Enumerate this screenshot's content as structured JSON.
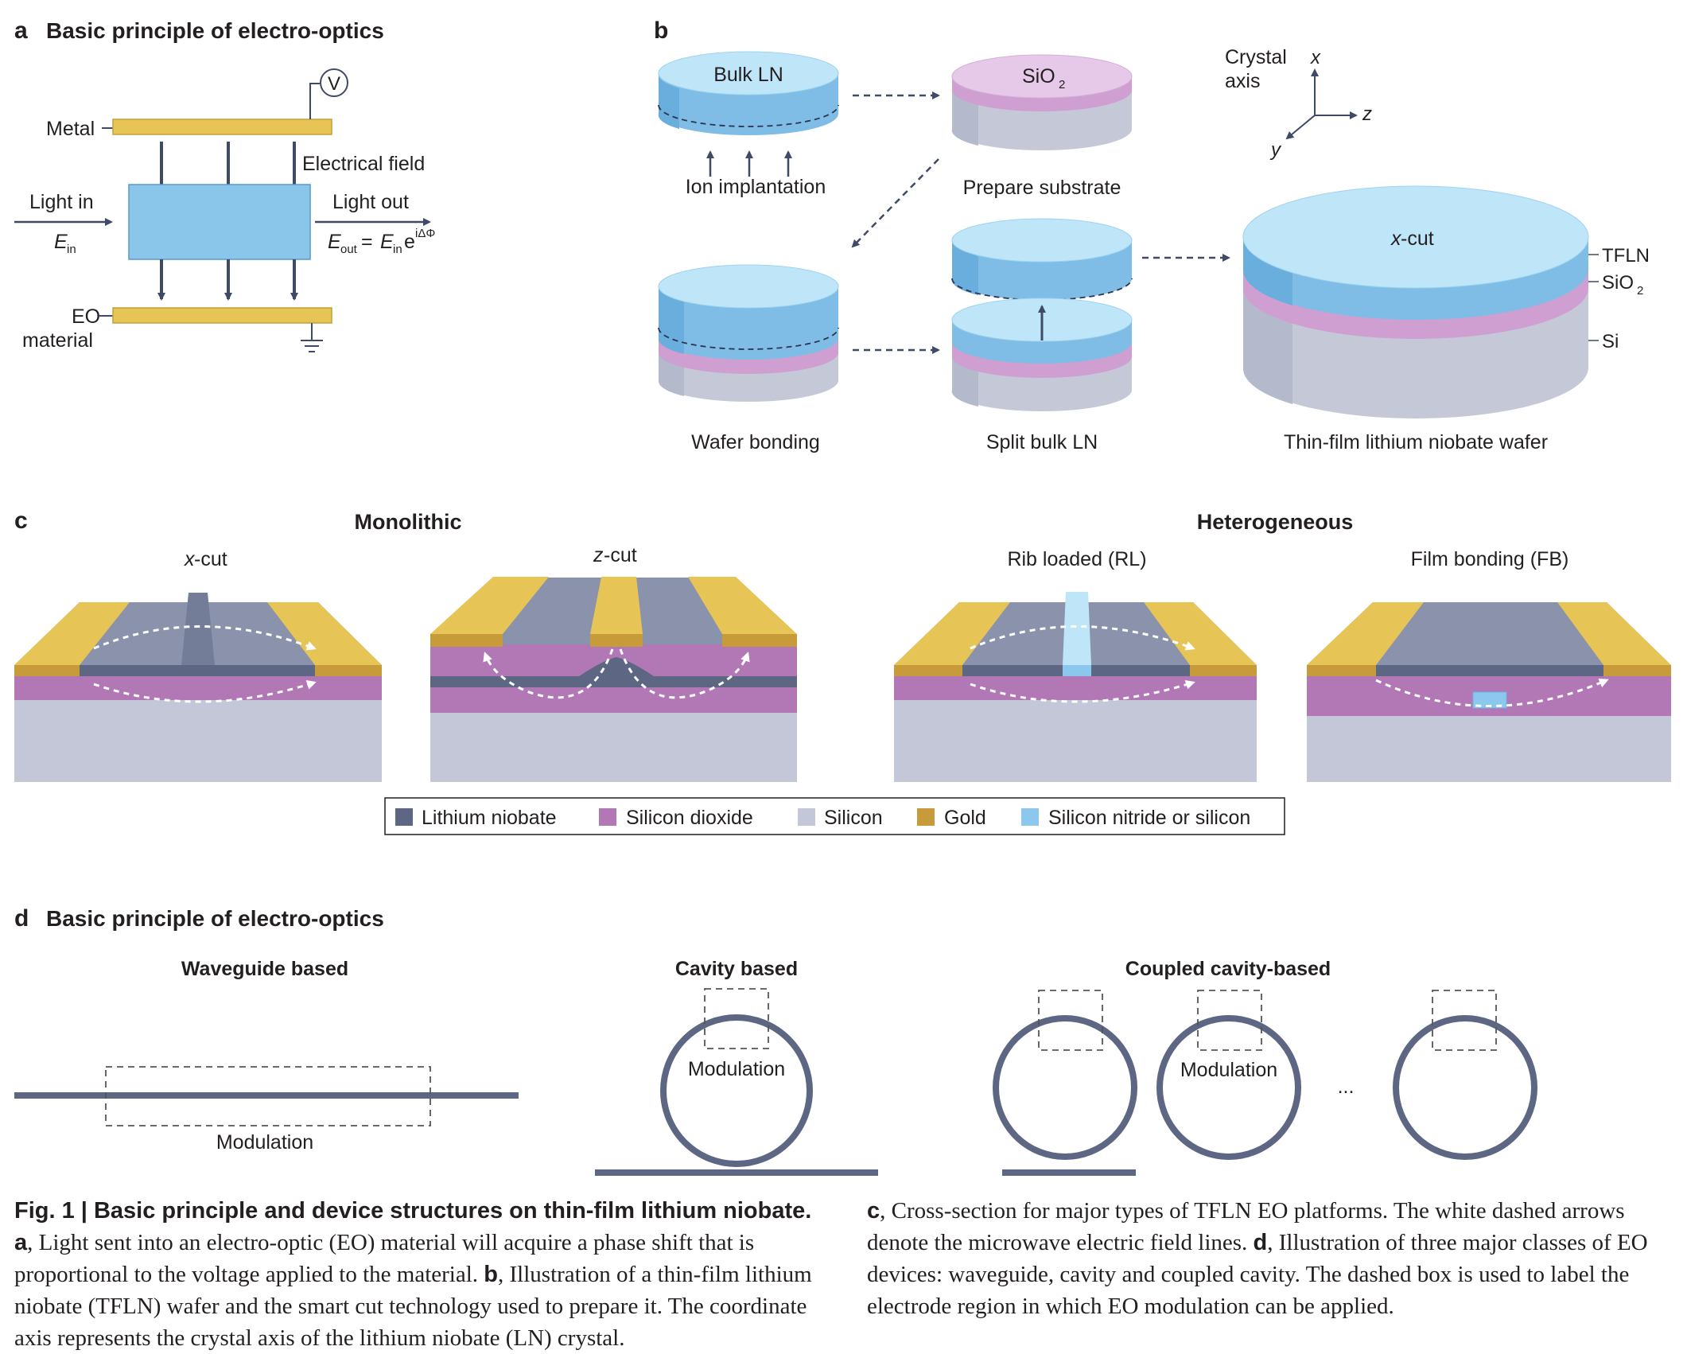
{
  "panel_a": {
    "letter": "a",
    "title": "Basic principle of electro-optics",
    "metal": "Metal",
    "voltage_symbol": "V",
    "electrical_field": "Electrical field",
    "light_in": "Light in",
    "e_in_base": "E",
    "e_in_sub": "in",
    "light_out": "Light out",
    "e_out_base": "E",
    "e_out_sub": "out",
    "equals": "=",
    "e_in2_base": "E",
    "e_in2_sub": "in",
    "exp_base": "e",
    "exp_power": "iΔΦ",
    "eo_line1": "EO",
    "eo_line2": "material"
  },
  "panel_b": {
    "letter": "b",
    "bulk_ln": "Bulk LN",
    "ion_implantation": "Ion implantation",
    "sio2_base": "SiO",
    "sio2_sub": "2",
    "prepare_substrate": "Prepare substrate",
    "crystal_axis_1": "Crystal",
    "crystal_axis_2": "axis",
    "axis_x": "x",
    "axis_y": "y",
    "axis_z": "z",
    "wafer_bonding": "Wafer bonding",
    "split_bulk_ln": "Split bulk LN",
    "x_cut_italic": "x",
    "x_cut_rest": "-cut",
    "tfln": "TFLN",
    "sio2_label_base": "SiO",
    "sio2_label_sub": "2",
    "si": "Si",
    "wafer_label": "Thin-film lithium niobate wafer"
  },
  "panel_c": {
    "letter": "c",
    "monolithic": "Monolithic",
    "heterogeneous": "Heterogeneous",
    "x_cut_italic": "x",
    "x_cut_rest": "-cut",
    "z_cut_italic": "z",
    "z_cut_rest": "-cut",
    "rib_loaded": "Rib loaded (RL)",
    "film_bonding": "Film bonding (FB)",
    "legend": [
      {
        "label": "Lithium niobate",
        "color": "#5d6784"
      },
      {
        "label": "Silicon dioxide",
        "color": "#b278b5"
      },
      {
        "label": "Silicon",
        "color": "#c3c7d7"
      },
      {
        "label": "Gold",
        "color": "#c79b3a"
      },
      {
        "label": "Silicon nitride or silicon",
        "color": "#8cc8ee"
      }
    ]
  },
  "panel_d": {
    "letter": "d",
    "title": "Basic principle of electro-optics",
    "waveguide_based": "Waveguide based",
    "cavity_based": "Cavity based",
    "coupled_cavity_based": "Coupled cavity-based",
    "modulation_1": "Modulation",
    "modulation_2": "Modulation",
    "modulation_3": "Modulation",
    "ellipsis": "..."
  },
  "caption": {
    "fig_label": "Fig. 1 | Basic principle and device structures on thin-film lithium niobate.",
    "a_label": "a",
    "a_text": ", Light sent into an electro-optic (EO) material will acquire a phase shift that is proportional to the voltage applied to the material. ",
    "b_label": "b",
    "b_text": ", Illustration of a thin-film lithium niobate (TFLN) wafer and the smart cut technology used to prepare it. The coordinate axis represents the crystal axis of the lithium niobate (LN) crystal.",
    "c_label": "c",
    "c_text": ", Cross-section for major types of TFLN EO platforms. The white dashed arrows denote the microwave electric field lines. ",
    "d_label": "d",
    "d_text": ", Illustration of three major classes of EO devices: waveguide, cavity and coupled cavity. The dashed box is used to label the electrode region in which EO modulation can be applied."
  },
  "colors": {
    "ln_blue": "#8ac6ea",
    "ln_top": "#bfe4f7",
    "sio2_pink": "#d3a8d6",
    "si_grey": "#c5c9d7",
    "gold": "#e6c456",
    "dark_line": "#4a5675"
  }
}
